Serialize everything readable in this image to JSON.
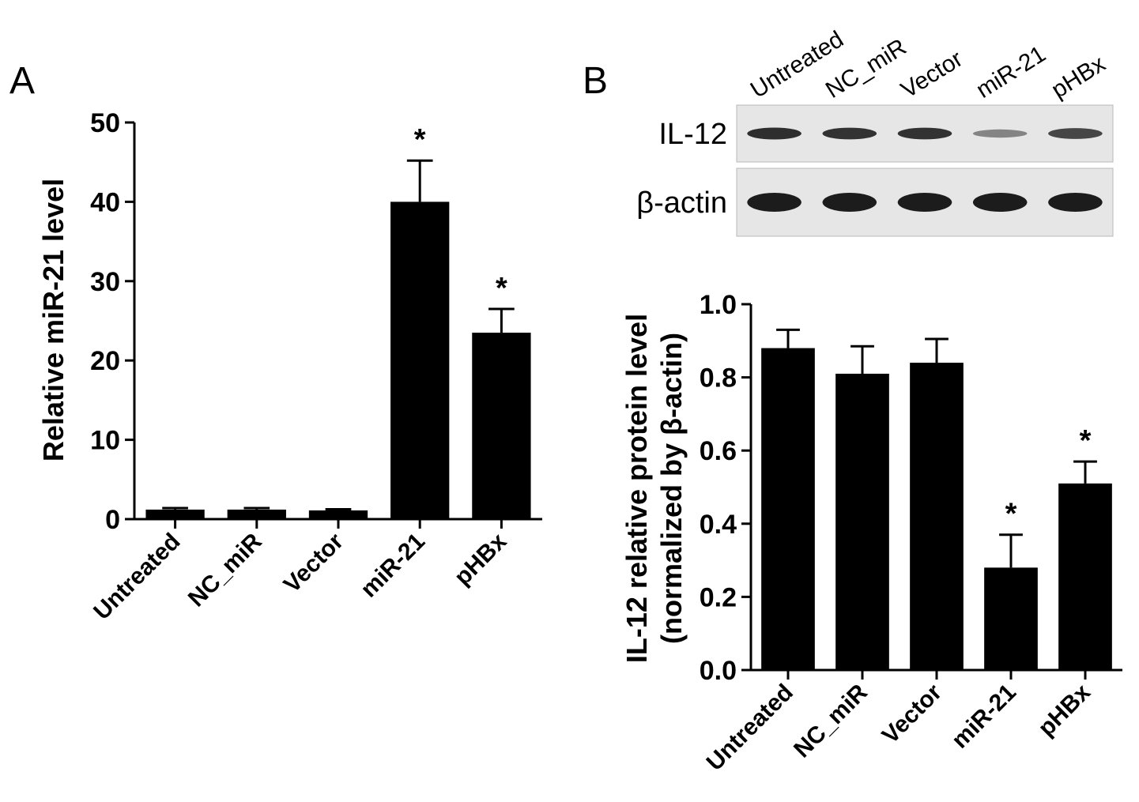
{
  "panels": {
    "a": {
      "letter": "A"
    },
    "b": {
      "letter": "B"
    }
  },
  "blot": {
    "lanes": [
      "Untreated",
      "NC_miR",
      "Vector",
      "miR-21",
      "pHBx"
    ],
    "rows": [
      {
        "label": "IL-12",
        "intensity": [
          0.88,
          0.85,
          0.85,
          0.3,
          0.72
        ]
      },
      {
        "label": "β-actin",
        "intensity": [
          1.0,
          1.0,
          1.0,
          1.0,
          1.0
        ]
      }
    ]
  },
  "chart_data": [
    {
      "type": "bar",
      "panel": "A",
      "categories": [
        "Untreated",
        "NC_miR",
        "Vector",
        "miR-21",
        "pHBx"
      ],
      "values": [
        1.2,
        1.2,
        1.1,
        40.0,
        23.5
      ],
      "errors": [
        0.2,
        0.2,
        0.15,
        5.2,
        3.0
      ],
      "significance": [
        "",
        "",
        "",
        "*",
        "*"
      ],
      "ylabel": "Relative miR-21 level",
      "ylim": [
        0,
        50
      ],
      "yticks": [
        "0",
        "10",
        "20",
        "30",
        "40",
        "50"
      ],
      "color": "#000000",
      "grid": false
    },
    {
      "type": "bar",
      "panel": "B",
      "categories": [
        "Untreated",
        "NC_miR",
        "Vector",
        "miR-21",
        "pHBx"
      ],
      "values": [
        0.88,
        0.81,
        0.84,
        0.28,
        0.51
      ],
      "errors": [
        0.05,
        0.075,
        0.065,
        0.09,
        0.06
      ],
      "significance": [
        "",
        "",
        "",
        "*",
        "*"
      ],
      "ylabel_lines": [
        "IL-12 relative protein level",
        "(normalized by β-actin)"
      ],
      "ylim": [
        0,
        1.0
      ],
      "yticks": [
        "0.0",
        "0.2",
        "0.4",
        "0.6",
        "0.8",
        "1.0"
      ],
      "color": "#000000",
      "grid": false
    }
  ]
}
